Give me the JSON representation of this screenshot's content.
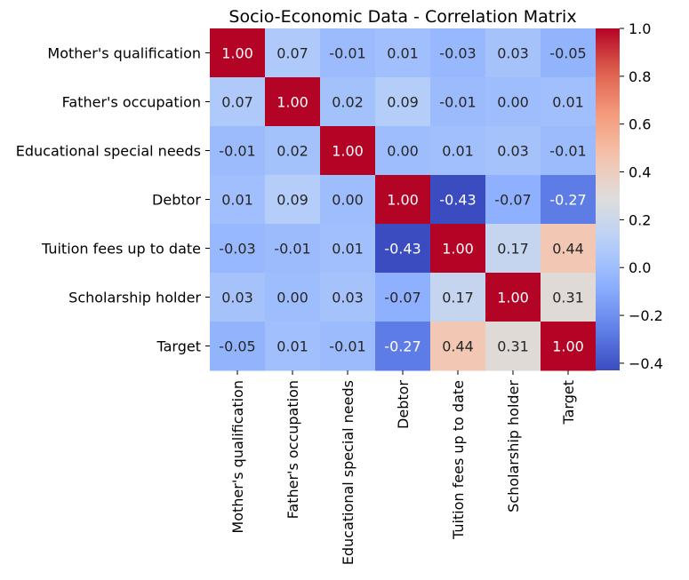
{
  "chart_data": {
    "type": "heatmap",
    "title": "Socio-Economic Data - Correlation Matrix",
    "labels": [
      "Mother's qualification",
      "Father's occupation",
      "Educational special needs",
      "Debtor",
      "Tuition fees up to date",
      "Scholarship holder",
      "Target"
    ],
    "values": [
      [
        1.0,
        0.07,
        -0.01,
        0.01,
        -0.03,
        0.03,
        -0.05
      ],
      [
        0.07,
        1.0,
        0.02,
        0.09,
        -0.01,
        0.0,
        0.01
      ],
      [
        -0.01,
        0.02,
        1.0,
        0.0,
        0.01,
        0.03,
        -0.01
      ],
      [
        0.01,
        0.09,
        0.0,
        1.0,
        -0.43,
        -0.07,
        -0.27
      ],
      [
        -0.03,
        -0.01,
        0.01,
        -0.43,
        1.0,
        0.17,
        0.44
      ],
      [
        0.03,
        0.0,
        0.03,
        -0.07,
        0.17,
        1.0,
        0.31
      ],
      [
        -0.05,
        0.01,
        -0.01,
        -0.27,
        0.44,
        0.31,
        1.0
      ]
    ],
    "colormap": "coolwarm",
    "vmin": -0.43,
    "vmax": 1.0,
    "colorbar_ticks": [
      "−0.4",
      "−0.2",
      "0.0",
      "0.2",
      "0.4",
      "0.6",
      "0.8",
      "1.0"
    ],
    "colorbar_tick_values": [
      -0.4,
      -0.2,
      0.0,
      0.2,
      0.4,
      0.6,
      0.8,
      1.0
    ],
    "annotation_format": "2 decimals"
  }
}
